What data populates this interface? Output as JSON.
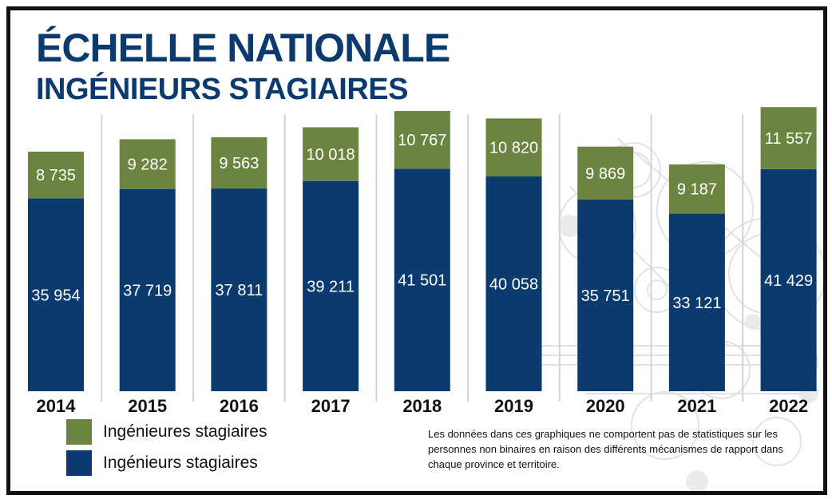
{
  "title": "ÉCHELLE NATIONALE",
  "subtitle": "INGÉNIEURS STAGIAIRES",
  "note": "Les données dans ces graphiques ne comportent pas de statistiques sur les personnes non binaires en raison des différents mécanismes de rapport dans chaque province et territoire.",
  "colors": {
    "title": "#0a3a6e",
    "top_series": "#6b8540",
    "bottom_series": "#0b3a6f",
    "divider": "#d4d4d4",
    "background": "#ffffff"
  },
  "legend": [
    {
      "label": "Ingénieures stagiaires",
      "color": "#6b8540"
    },
    {
      "label": "Ingénieurs stagiaires",
      "color": "#0b3a6f"
    }
  ],
  "chart_data": {
    "type": "bar",
    "stacked": true,
    "categories": [
      "2014",
      "2015",
      "2016",
      "2017",
      "2018",
      "2019",
      "2020",
      "2021",
      "2022"
    ],
    "series": [
      {
        "name": "Ingénieurs stagiaires",
        "values": [
          35954,
          37719,
          37811,
          39211,
          41501,
          40058,
          35751,
          33121,
          41429
        ],
        "labels": [
          "35 954",
          "37 719",
          "37 811",
          "39 211",
          "41 501",
          "40 058",
          "35 751",
          "33 121",
          "41 429"
        ]
      },
      {
        "name": "Ingénieures stagiaires",
        "values": [
          8735,
          9282,
          9563,
          10018,
          10767,
          10820,
          9869,
          9187,
          11557
        ],
        "labels": [
          "8 735",
          "9 282",
          "9 563",
          "10 018",
          "10 767",
          "10 820",
          "9 869",
          "9 187",
          "11 557"
        ]
      }
    ],
    "xlabel": "",
    "ylabel": "",
    "axis_visible": false,
    "grid": false,
    "legend_position": "bottom-left"
  }
}
